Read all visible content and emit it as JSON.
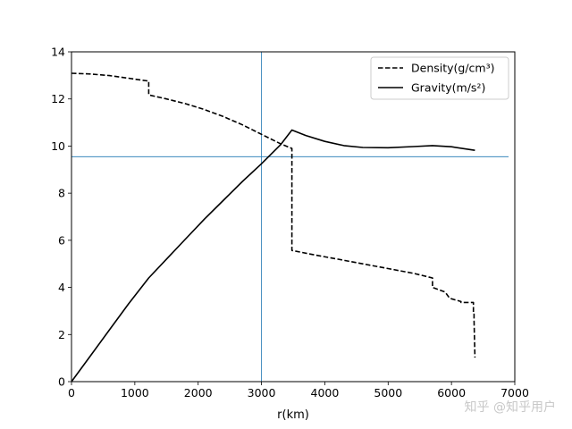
{
  "chart_data": {
    "type": "line",
    "xlabel": "r(km)",
    "ylabel": "",
    "xlim": [
      0,
      7000
    ],
    "ylim": [
      0,
      14
    ],
    "xticks": [
      0,
      1000,
      2000,
      3000,
      4000,
      5000,
      6000,
      7000
    ],
    "yticks": [
      0,
      2,
      4,
      6,
      8,
      10,
      12,
      14
    ],
    "grid": false,
    "legend_position": "top-right",
    "reference_lines": {
      "x": 3000,
      "y": 9.55,
      "color": "#1f77b4"
    },
    "series": [
      {
        "name": "Density(g/cm³)",
        "style": "dashed",
        "color": "#000000",
        "x": [
          0,
          300,
          600,
          900,
          1100,
          1220,
          1220,
          1500,
          1800,
          2100,
          2400,
          2700,
          3000,
          3300,
          3480,
          3480,
          3800,
          4200,
          4600,
          5000,
          5400,
          5700,
          5700,
          5900,
          5971,
          6151,
          6151,
          6346,
          6346,
          6356,
          6356,
          6371
        ],
        "y": [
          13.09,
          13.06,
          12.99,
          12.88,
          12.8,
          12.76,
          12.17,
          12.0,
          11.8,
          11.55,
          11.25,
          10.9,
          10.5,
          10.1,
          9.9,
          5.57,
          5.4,
          5.2,
          5.0,
          4.8,
          4.6,
          4.4,
          4.0,
          3.8,
          3.54,
          3.4,
          3.36,
          3.36,
          2.9,
          2.9,
          2.6,
          1.02
        ]
      },
      {
        "name": "Gravity(m/s²)",
        "style": "solid",
        "color": "#000000",
        "x": [
          0,
          300,
          600,
          900,
          1220,
          1500,
          1800,
          2100,
          2400,
          2700,
          3000,
          3300,
          3480,
          3700,
          4000,
          4300,
          4600,
          5000,
          5400,
          5700,
          6000,
          6371
        ],
        "y": [
          0,
          1.1,
          2.2,
          3.3,
          4.4,
          5.2,
          6.05,
          6.9,
          7.7,
          8.5,
          9.25,
          10.05,
          10.68,
          10.45,
          10.2,
          10.02,
          9.94,
          9.93,
          9.98,
          10.02,
          9.97,
          9.82
        ]
      }
    ]
  },
  "watermark": "知乎 @知乎用户"
}
